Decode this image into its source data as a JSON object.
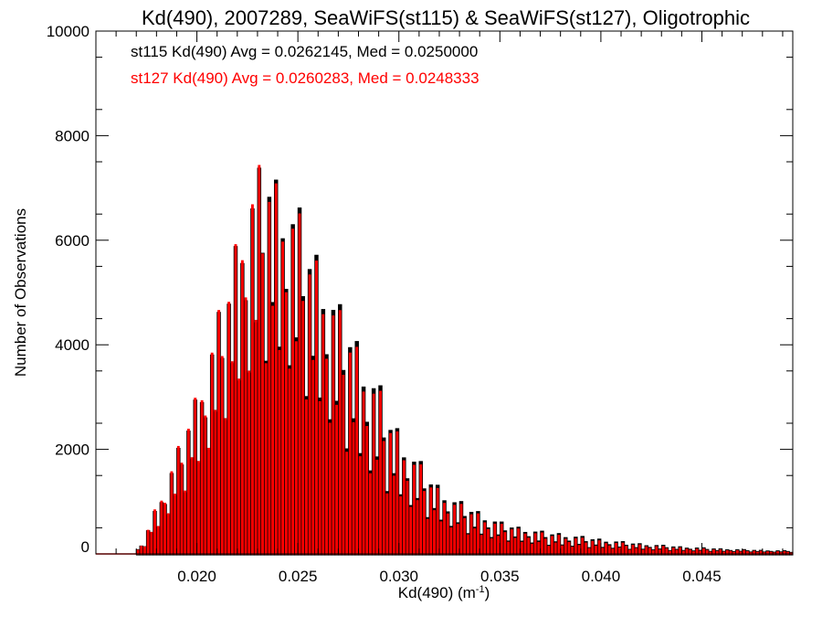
{
  "chart_data": {
    "type": "bar",
    "title": "Kd(490), 2007289, SeaWiFS(st115) & SeaWiFS(st127), Oligotrophic",
    "xlabel": "Kd(490) (m",
    "xlabel_superscript": "-1",
    "xlabel_suffix": ")",
    "ylabel": "Number of Observations",
    "xlim": [
      0.015,
      0.0495
    ],
    "ylim": [
      0,
      10000
    ],
    "x_ticks": [
      0.02,
      0.025,
      0.03,
      0.035,
      0.04,
      0.045
    ],
    "x_tick_labels": [
      "0.020",
      "0.025",
      "0.030",
      "0.035",
      "0.040",
      "0.045"
    ],
    "y_ticks": [
      0,
      2000,
      4000,
      6000,
      8000,
      10000
    ],
    "y_tick_labels": [
      "0",
      "2000",
      "4000",
      "6000",
      "8000",
      "10000"
    ],
    "grid": false,
    "legend_position": "top-left",
    "bin_width": 0.0001667,
    "series": [
      {
        "name": "st115",
        "color": "#000000",
        "stats_text": "st115 Kd(490) Avg = 0.0262145, Med = 0.0250000",
        "envelope_high": [
          [
            0.017,
            0
          ],
          [
            0.0172,
            150
          ],
          [
            0.0175,
            400
          ],
          [
            0.018,
            900
          ],
          [
            0.0185,
            1400
          ],
          [
            0.019,
            1900
          ],
          [
            0.0195,
            2500
          ],
          [
            0.02,
            3100
          ],
          [
            0.0205,
            3700
          ],
          [
            0.021,
            4500
          ],
          [
            0.0215,
            5100
          ],
          [
            0.022,
            6200
          ],
          [
            0.0225,
            7000
          ],
          [
            0.023,
            7300
          ],
          [
            0.0235,
            7650
          ],
          [
            0.024,
            7250
          ],
          [
            0.0245,
            6900
          ],
          [
            0.025,
            6700
          ],
          [
            0.0255,
            6100
          ],
          [
            0.026,
            5800
          ],
          [
            0.0265,
            5300
          ],
          [
            0.027,
            4800
          ],
          [
            0.0275,
            4500
          ],
          [
            0.028,
            4100
          ],
          [
            0.0285,
            3600
          ],
          [
            0.029,
            3300
          ],
          [
            0.0295,
            2700
          ],
          [
            0.03,
            2400
          ],
          [
            0.0305,
            2000
          ],
          [
            0.031,
            1800
          ],
          [
            0.0315,
            1500
          ],
          [
            0.032,
            1300
          ],
          [
            0.0325,
            1100
          ],
          [
            0.033,
            1000
          ],
          [
            0.0335,
            900
          ],
          [
            0.034,
            800
          ],
          [
            0.0345,
            700
          ],
          [
            0.035,
            600
          ],
          [
            0.036,
            500
          ],
          [
            0.037,
            420
          ],
          [
            0.038,
            380
          ],
          [
            0.039,
            320
          ],
          [
            0.04,
            270
          ],
          [
            0.041,
            220
          ],
          [
            0.042,
            180
          ],
          [
            0.043,
            150
          ],
          [
            0.044,
            120
          ],
          [
            0.045,
            100
          ],
          [
            0.046,
            80
          ],
          [
            0.047,
            65
          ],
          [
            0.048,
            50
          ],
          [
            0.0495,
            40
          ]
        ],
        "envelope_low": [
          [
            0.017,
            0
          ],
          [
            0.0172,
            40
          ],
          [
            0.0175,
            150
          ],
          [
            0.018,
            400
          ],
          [
            0.0185,
            650
          ],
          [
            0.019,
            900
          ],
          [
            0.0195,
            1200
          ],
          [
            0.02,
            1500
          ],
          [
            0.0205,
            1800
          ],
          [
            0.021,
            2200
          ],
          [
            0.0215,
            2600
          ],
          [
            0.022,
            2900
          ],
          [
            0.0225,
            3200
          ],
          [
            0.023,
            3500
          ],
          [
            0.0235,
            3700
          ],
          [
            0.024,
            3600
          ],
          [
            0.0245,
            3450
          ],
          [
            0.025,
            3200
          ],
          [
            0.0255,
            2950
          ],
          [
            0.026,
            2700
          ],
          [
            0.0265,
            2450
          ],
          [
            0.027,
            2200
          ],
          [
            0.0275,
            1950
          ],
          [
            0.028,
            1700
          ],
          [
            0.0285,
            1500
          ],
          [
            0.029,
            1300
          ],
          [
            0.0295,
            1150
          ],
          [
            0.03,
            1000
          ],
          [
            0.0305,
            870
          ],
          [
            0.031,
            760
          ],
          [
            0.0315,
            660
          ],
          [
            0.032,
            570
          ],
          [
            0.0325,
            490
          ],
          [
            0.033,
            420
          ],
          [
            0.0335,
            360
          ],
          [
            0.034,
            320
          ],
          [
            0.0345,
            280
          ],
          [
            0.035,
            250
          ],
          [
            0.036,
            200
          ],
          [
            0.037,
            160
          ],
          [
            0.038,
            130
          ],
          [
            0.039,
            110
          ],
          [
            0.04,
            90
          ],
          [
            0.041,
            75
          ],
          [
            0.042,
            60
          ],
          [
            0.043,
            50
          ],
          [
            0.044,
            40
          ],
          [
            0.045,
            32
          ],
          [
            0.046,
            26
          ],
          [
            0.047,
            20
          ],
          [
            0.048,
            15
          ],
          [
            0.0495,
            10
          ]
        ]
      },
      {
        "name": "st127",
        "color": "#ff0000",
        "stats_text": "st127 Kd(490) Avg = 0.0260283, Med = 0.0248333",
        "envelope_high": [
          [
            0.017,
            0
          ],
          [
            0.0172,
            160
          ],
          [
            0.0175,
            420
          ],
          [
            0.018,
            950
          ],
          [
            0.0185,
            1450
          ],
          [
            0.019,
            1950
          ],
          [
            0.0195,
            2550
          ],
          [
            0.02,
            3150
          ],
          [
            0.0205,
            3750
          ],
          [
            0.021,
            4550
          ],
          [
            0.0215,
            5150
          ],
          [
            0.022,
            6250
          ],
          [
            0.0225,
            7100
          ],
          [
            0.023,
            7400
          ],
          [
            0.0235,
            7550
          ],
          [
            0.024,
            7200
          ],
          [
            0.0245,
            6850
          ],
          [
            0.025,
            6600
          ],
          [
            0.0255,
            6000
          ],
          [
            0.026,
            5700
          ],
          [
            0.0265,
            5200
          ],
          [
            0.027,
            4700
          ],
          [
            0.0275,
            4400
          ],
          [
            0.028,
            4000
          ],
          [
            0.0285,
            3500
          ],
          [
            0.029,
            3200
          ],
          [
            0.0295,
            2650
          ],
          [
            0.03,
            2350
          ],
          [
            0.0305,
            1950
          ],
          [
            0.031,
            1750
          ],
          [
            0.0315,
            1450
          ],
          [
            0.032,
            1250
          ],
          [
            0.0325,
            1060
          ],
          [
            0.033,
            960
          ],
          [
            0.0335,
            860
          ],
          [
            0.034,
            770
          ],
          [
            0.0345,
            670
          ],
          [
            0.035,
            570
          ],
          [
            0.036,
            480
          ],
          [
            0.037,
            400
          ],
          [
            0.038,
            360
          ],
          [
            0.039,
            300
          ],
          [
            0.04,
            250
          ],
          [
            0.041,
            205
          ],
          [
            0.042,
            170
          ],
          [
            0.043,
            140
          ],
          [
            0.044,
            112
          ],
          [
            0.045,
            92
          ],
          [
            0.046,
            75
          ],
          [
            0.047,
            60
          ],
          [
            0.048,
            46
          ],
          [
            0.0495,
            36
          ]
        ],
        "envelope_low": [
          [
            0.017,
            0
          ],
          [
            0.0172,
            45
          ],
          [
            0.0175,
            160
          ],
          [
            0.018,
            420
          ],
          [
            0.0185,
            680
          ],
          [
            0.019,
            940
          ],
          [
            0.0195,
            1250
          ],
          [
            0.02,
            1550
          ],
          [
            0.0205,
            1850
          ],
          [
            0.021,
            2250
          ],
          [
            0.0215,
            2650
          ],
          [
            0.022,
            2950
          ],
          [
            0.0225,
            3250
          ],
          [
            0.023,
            3550
          ],
          [
            0.0235,
            3650
          ],
          [
            0.024,
            3550
          ],
          [
            0.0245,
            3400
          ],
          [
            0.025,
            3150
          ],
          [
            0.0255,
            2900
          ],
          [
            0.026,
            2650
          ],
          [
            0.0265,
            2400
          ],
          [
            0.027,
            2150
          ],
          [
            0.0275,
            1900
          ],
          [
            0.028,
            1660
          ],
          [
            0.0285,
            1460
          ],
          [
            0.029,
            1270
          ],
          [
            0.0295,
            1120
          ],
          [
            0.03,
            975
          ],
          [
            0.0305,
            850
          ],
          [
            0.031,
            740
          ],
          [
            0.0315,
            640
          ],
          [
            0.032,
            555
          ],
          [
            0.0325,
            475
          ],
          [
            0.033,
            410
          ],
          [
            0.0335,
            350
          ],
          [
            0.034,
            310
          ],
          [
            0.0345,
            270
          ],
          [
            0.035,
            240
          ],
          [
            0.036,
            190
          ],
          [
            0.037,
            150
          ],
          [
            0.038,
            125
          ],
          [
            0.039,
            105
          ],
          [
            0.04,
            86
          ],
          [
            0.041,
            72
          ],
          [
            0.042,
            58
          ],
          [
            0.043,
            48
          ],
          [
            0.044,
            38
          ],
          [
            0.045,
            30
          ],
          [
            0.046,
            24
          ],
          [
            0.047,
            19
          ],
          [
            0.048,
            14
          ],
          [
            0.0495,
            9
          ]
        ]
      }
    ]
  }
}
